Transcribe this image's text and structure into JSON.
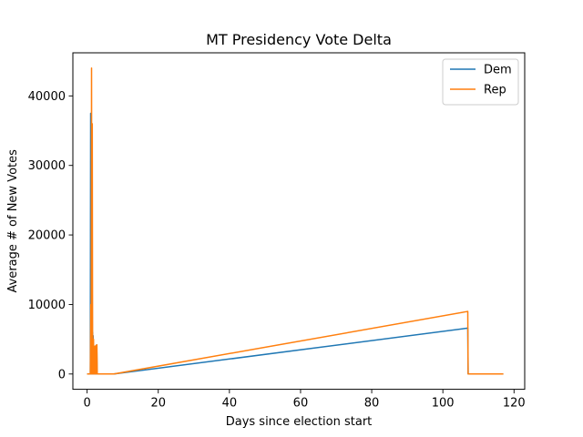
{
  "chart_data": {
    "type": "line",
    "title": "MT Presidency Vote Delta",
    "xlabel": "Days since election start",
    "ylabel": "Average # of New Votes",
    "xlim": [
      -4,
      123
    ],
    "ylim": [
      -2200,
      46200
    ],
    "xticks": [
      0,
      20,
      40,
      60,
      80,
      100,
      120
    ],
    "yticks": [
      0,
      10000,
      20000,
      30000,
      40000
    ],
    "grid": false,
    "legend": "top-right",
    "series": [
      {
        "name": "Dem",
        "color": "#1f77b4",
        "points": [
          [
            0,
            0
          ],
          [
            0.9,
            0
          ],
          [
            1.0,
            37500
          ],
          [
            1.1,
            0
          ],
          [
            1.2,
            36000
          ],
          [
            1.3,
            0
          ],
          [
            1.4,
            20000
          ],
          [
            1.5,
            0
          ],
          [
            1.55,
            6000
          ],
          [
            1.65,
            0
          ],
          [
            1.7,
            5500
          ],
          [
            1.8,
            0
          ],
          [
            1.9,
            4000
          ],
          [
            2.0,
            0
          ],
          [
            2.1,
            3500
          ],
          [
            2.2,
            0
          ],
          [
            2.4,
            4000
          ],
          [
            2.5,
            0
          ],
          [
            2.7,
            4200
          ],
          [
            2.8,
            0
          ],
          [
            7.5,
            0
          ],
          [
            107,
            6600
          ],
          [
            107.1,
            0
          ],
          [
            117,
            0
          ]
        ]
      },
      {
        "name": "Rep",
        "color": "#ff7f0e",
        "points": [
          [
            0,
            0
          ],
          [
            0.9,
            0
          ],
          [
            1.05,
            10000
          ],
          [
            1.15,
            0
          ],
          [
            1.25,
            44000
          ],
          [
            1.35,
            0
          ],
          [
            1.45,
            36000
          ],
          [
            1.55,
            0
          ],
          [
            1.6,
            5500
          ],
          [
            1.7,
            0
          ],
          [
            1.8,
            5000
          ],
          [
            1.9,
            0
          ],
          [
            2.0,
            3800
          ],
          [
            2.1,
            0
          ],
          [
            2.2,
            4000
          ],
          [
            2.3,
            0
          ],
          [
            2.5,
            4100
          ],
          [
            2.6,
            0
          ],
          [
            2.75,
            4200
          ],
          [
            2.85,
            0
          ],
          [
            7.5,
            0
          ],
          [
            107,
            9000
          ],
          [
            107.1,
            0
          ],
          [
            117,
            0
          ]
        ]
      }
    ]
  }
}
